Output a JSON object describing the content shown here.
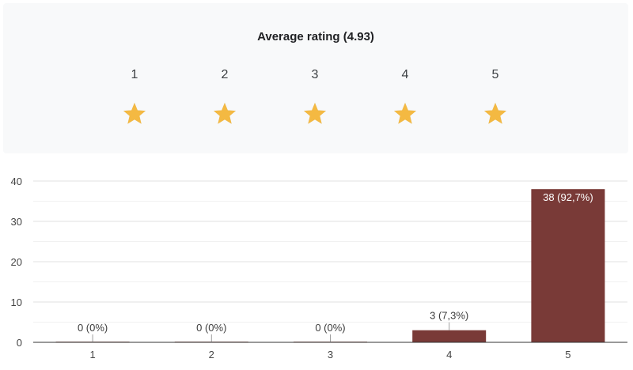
{
  "rating": {
    "title": "Average rating (4.93)",
    "average": 4.93,
    "max_stars": 5,
    "star_labels": [
      "1",
      "2",
      "3",
      "4",
      "5"
    ],
    "star_color": "#f4b942",
    "star_empty_color": "#c9c9c9",
    "star_icon": "star-icon"
  },
  "chart_data": {
    "type": "bar",
    "categories": [
      "1",
      "2",
      "3",
      "4",
      "5"
    ],
    "values": [
      0,
      0,
      0,
      3,
      38
    ],
    "data_labels": [
      "0 (0%)",
      "0 (0%)",
      "0 (0%)",
      "3 (7,3%)",
      "38 (92,7%)"
    ],
    "ylim": [
      0,
      40
    ],
    "yticks": [
      0,
      10,
      20,
      30,
      40
    ],
    "grid": true,
    "bar_color": "#793a37",
    "title": "",
    "xlabel": "",
    "ylabel": ""
  }
}
